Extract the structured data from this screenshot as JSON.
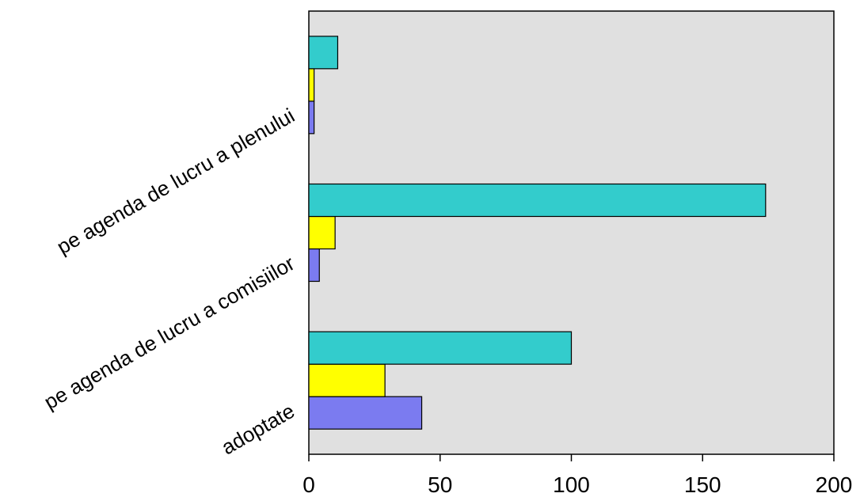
{
  "chart_data": {
    "type": "bar",
    "orientation": "horizontal",
    "categories": [
      "adoptate",
      "pe agenda de lucru a comisiilor",
      "pe agenda de lucru a plenului"
    ],
    "series": [
      {
        "color": "#7b7bf0",
        "values": [
          43,
          4,
          2
        ]
      },
      {
        "color": "#ffff00",
        "values": [
          29,
          10,
          2
        ]
      },
      {
        "color": "#33cccc",
        "values": [
          100,
          174,
          11
        ]
      }
    ],
    "x_ticks": [
      "0",
      "50",
      "100",
      "150",
      "200"
    ],
    "xlim": [
      0,
      200
    ],
    "plot_background": "#e0e0e0",
    "grid": false,
    "legend": "none",
    "title": "",
    "xlabel": "",
    "ylabel": ""
  }
}
